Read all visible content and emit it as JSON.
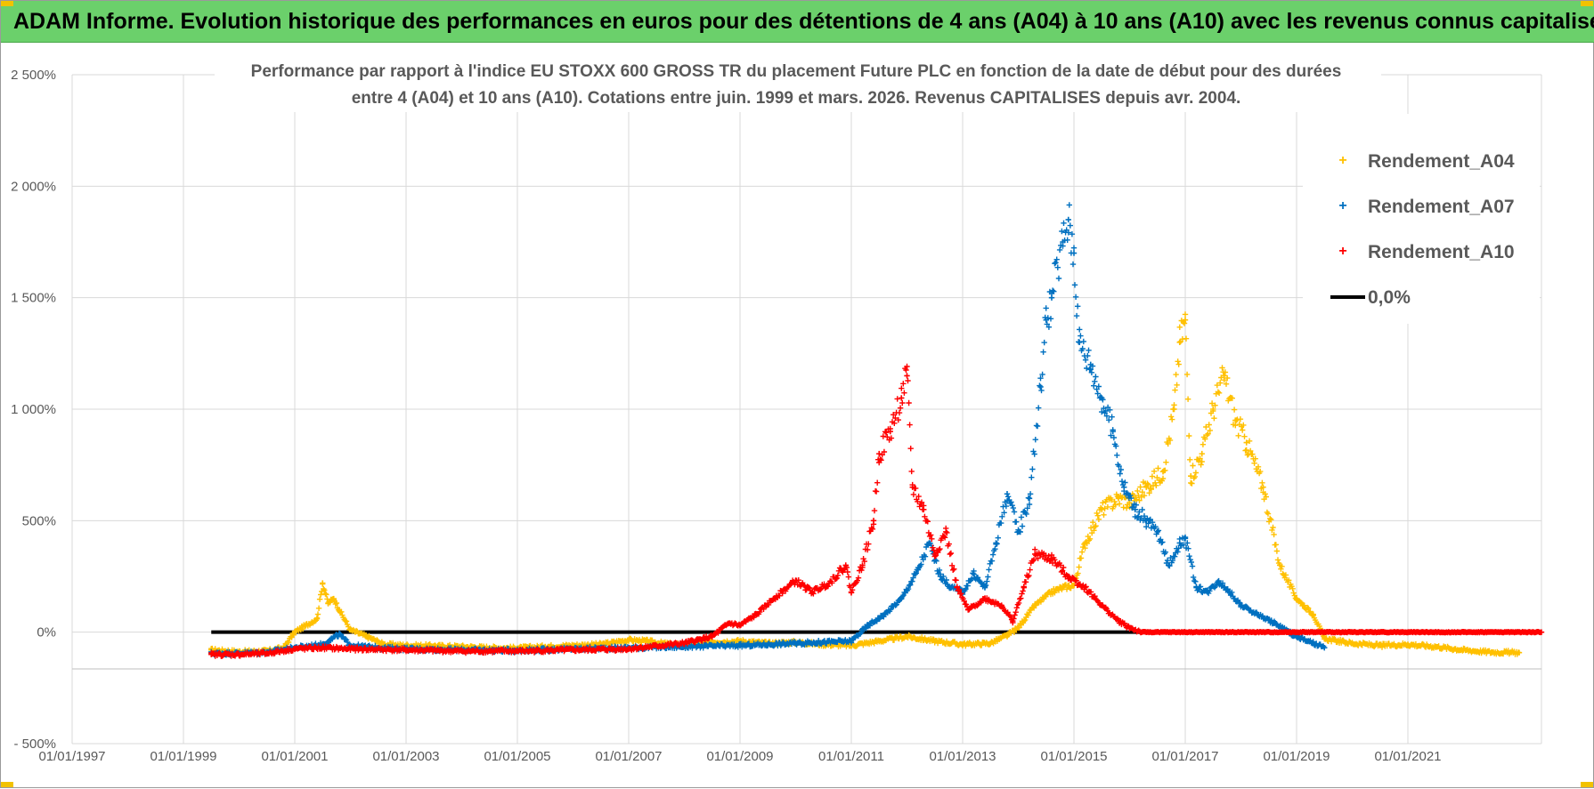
{
  "banner": {
    "title": "ADAM Informe. Evolution historique des performances en euros pour des détentions de 4 ans (A04) à 10 ans (A10) avec les revenus connus capitalisés"
  },
  "colors": {
    "banner_bg": "#6bd06b",
    "a04": "#ffc000",
    "a07": "#0070c0",
    "a10": "#ff0000",
    "zero_line": "#000000",
    "grid": "#d9d9d9",
    "text": "#595959"
  },
  "chart_data": {
    "type": "scatter",
    "title_lines": [
      "Performance par rapport à l'indice EU STOXX 600 GROSS TR  du placement Future PLC en fonction de la date de début pour des durées",
      "entre 4 (A04) et 10 ans (A10). Cotations entre juin. 1999 et mars. 2026. Revenus CAPITALISES depuis avr. 2004."
    ],
    "xlabel": "",
    "ylabel": "",
    "x_range_years": [
      1997.0,
      2023.4
    ],
    "ylim": [
      -500,
      2500
    ],
    "y_ticks": [
      {
        "value": 2500,
        "label": "2 500%"
      },
      {
        "value": 2000,
        "label": "2 000%"
      },
      {
        "value": 1500,
        "label": "1 500%"
      },
      {
        "value": 1000,
        "label": "1 000%"
      },
      {
        "value": 500,
        "label": "500%"
      },
      {
        "value": 0,
        "label": "0%"
      },
      {
        "value": -500,
        "label": "- 500%"
      }
    ],
    "x_ticks": [
      {
        "value": 1997.0,
        "label": "01/01/1997"
      },
      {
        "value": 1999.0,
        "label": "01/01/1999"
      },
      {
        "value": 2001.0,
        "label": "01/01/2001"
      },
      {
        "value": 2003.0,
        "label": "01/01/2003"
      },
      {
        "value": 2005.0,
        "label": "01/01/2005"
      },
      {
        "value": 2007.0,
        "label": "01/01/2007"
      },
      {
        "value": 2009.0,
        "label": "01/01/2009"
      },
      {
        "value": 2011.0,
        "label": "01/01/2011"
      },
      {
        "value": 2013.0,
        "label": "01/01/2013"
      },
      {
        "value": 2015.0,
        "label": "01/01/2015"
      },
      {
        "value": 2017.0,
        "label": "01/01/2017"
      },
      {
        "value": 2019.0,
        "label": "01/01/2019"
      },
      {
        "value": 2021.0,
        "label": "01/01/2021"
      }
    ],
    "grid": true,
    "legend_position": "top-right",
    "zero_line": {
      "name": "0,0%",
      "value": 0,
      "x_start": 1999.5,
      "x_end": 2023.4
    },
    "series": [
      {
        "name": "Rendement_A04",
        "color_key": "a04",
        "points": [
          [
            1999.5,
            -80
          ],
          [
            2000.0,
            -88
          ],
          [
            2000.5,
            -85
          ],
          [
            2000.8,
            -70
          ],
          [
            2001.0,
            0
          ],
          [
            2001.2,
            30
          ],
          [
            2001.4,
            60
          ],
          [
            2001.5,
            220
          ],
          [
            2001.6,
            130
          ],
          [
            2001.7,
            150
          ],
          [
            2001.8,
            100
          ],
          [
            2002.0,
            10
          ],
          [
            2002.3,
            -20
          ],
          [
            2002.6,
            -55
          ],
          [
            2003.0,
            -60
          ],
          [
            2003.5,
            -62
          ],
          [
            2004.0,
            -65
          ],
          [
            2004.5,
            -70
          ],
          [
            2005.0,
            -72
          ],
          [
            2005.5,
            -65
          ],
          [
            2006.0,
            -60
          ],
          [
            2006.5,
            -55
          ],
          [
            2007.0,
            -35
          ],
          [
            2007.3,
            -40
          ],
          [
            2007.6,
            -50
          ],
          [
            2008.0,
            -60
          ],
          [
            2008.5,
            -45
          ],
          [
            2009.0,
            -40
          ],
          [
            2009.5,
            -50
          ],
          [
            2010.0,
            -45
          ],
          [
            2010.5,
            -55
          ],
          [
            2011.0,
            -60
          ],
          [
            2011.5,
            -40
          ],
          [
            2012.0,
            -20
          ],
          [
            2012.5,
            -40
          ],
          [
            2013.0,
            -55
          ],
          [
            2013.5,
            -50
          ],
          [
            2013.8,
            -15
          ],
          [
            2014.0,
            20
          ],
          [
            2014.3,
            120
          ],
          [
            2014.6,
            180
          ],
          [
            2014.8,
            200
          ],
          [
            2015.0,
            210
          ],
          [
            2015.2,
            400
          ],
          [
            2015.5,
            550
          ],
          [
            2015.8,
            600
          ],
          [
            2016.0,
            580
          ],
          [
            2016.3,
            650
          ],
          [
            2016.6,
            720
          ],
          [
            2016.8,
            1000
          ],
          [
            2016.9,
            1300
          ],
          [
            2017.0,
            1400
          ],
          [
            2017.1,
            700
          ],
          [
            2017.3,
            800
          ],
          [
            2017.5,
            1000
          ],
          [
            2017.7,
            1150
          ],
          [
            2017.9,
            950
          ],
          [
            2018.1,
            850
          ],
          [
            2018.4,
            650
          ],
          [
            2018.7,
            300
          ],
          [
            2019.0,
            150
          ],
          [
            2019.3,
            80
          ],
          [
            2019.5,
            -30
          ],
          [
            2020.0,
            -50
          ],
          [
            2020.5,
            -60
          ],
          [
            2021.0,
            -55
          ],
          [
            2021.5,
            -65
          ],
          [
            2022.0,
            -80
          ],
          [
            2022.5,
            -90
          ],
          [
            2023.0,
            -92
          ]
        ]
      },
      {
        "name": "Rendement_A07",
        "color_key": "a07",
        "points": [
          [
            1999.5,
            -95
          ],
          [
            2000.0,
            -95
          ],
          [
            2000.5,
            -90
          ],
          [
            2001.0,
            -70
          ],
          [
            2001.5,
            -55
          ],
          [
            2001.8,
            -10
          ],
          [
            2002.0,
            -60
          ],
          [
            2002.5,
            -70
          ],
          [
            2003.0,
            -75
          ],
          [
            2004.0,
            -80
          ],
          [
            2005.0,
            -82
          ],
          [
            2006.0,
            -75
          ],
          [
            2007.0,
            -70
          ],
          [
            2008.0,
            -65
          ],
          [
            2009.0,
            -60
          ],
          [
            2009.5,
            -55
          ],
          [
            2010.0,
            -50
          ],
          [
            2010.5,
            -45
          ],
          [
            2011.0,
            -40
          ],
          [
            2011.3,
            30
          ],
          [
            2011.6,
            80
          ],
          [
            2011.9,
            150
          ],
          [
            2012.2,
            280
          ],
          [
            2012.4,
            400
          ],
          [
            2012.6,
            250
          ],
          [
            2012.8,
            200
          ],
          [
            2013.0,
            180
          ],
          [
            2013.2,
            260
          ],
          [
            2013.4,
            200
          ],
          [
            2013.6,
            400
          ],
          [
            2013.8,
            620
          ],
          [
            2014.0,
            450
          ],
          [
            2014.2,
            600
          ],
          [
            2014.4,
            1100
          ],
          [
            2014.5,
            1400
          ],
          [
            2014.6,
            1500
          ],
          [
            2014.8,
            1750
          ],
          [
            2014.9,
            1850
          ],
          [
            2015.0,
            1700
          ],
          [
            2015.1,
            1300
          ],
          [
            2015.3,
            1200
          ],
          [
            2015.5,
            1050
          ],
          [
            2015.7,
            900
          ],
          [
            2015.9,
            650
          ],
          [
            2016.1,
            550
          ],
          [
            2016.3,
            500
          ],
          [
            2016.5,
            450
          ],
          [
            2016.7,
            300
          ],
          [
            2016.9,
            400
          ],
          [
            2017.0,
            420
          ],
          [
            2017.2,
            200
          ],
          [
            2017.4,
            180
          ],
          [
            2017.6,
            230
          ],
          [
            2017.8,
            180
          ],
          [
            2018.0,
            120
          ],
          [
            2018.3,
            80
          ],
          [
            2018.6,
            40
          ],
          [
            2019.0,
            -20
          ],
          [
            2019.3,
            -50
          ],
          [
            2019.5,
            -70
          ]
        ]
      },
      {
        "name": "Rendement_A10",
        "color_key": "a10",
        "points": [
          [
            1999.5,
            -100
          ],
          [
            2000.0,
            -100
          ],
          [
            2000.5,
            -95
          ],
          [
            2001.0,
            -75
          ],
          [
            2001.5,
            -70
          ],
          [
            2002.0,
            -75
          ],
          [
            2003.0,
            -80
          ],
          [
            2004.0,
            -85
          ],
          [
            2005.0,
            -85
          ],
          [
            2006.0,
            -80
          ],
          [
            2007.0,
            -75
          ],
          [
            2008.0,
            -50
          ],
          [
            2008.5,
            -20
          ],
          [
            2008.8,
            40
          ],
          [
            2009.0,
            30
          ],
          [
            2009.3,
            80
          ],
          [
            2009.6,
            150
          ],
          [
            2010.0,
            230
          ],
          [
            2010.3,
            180
          ],
          [
            2010.6,
            220
          ],
          [
            2010.9,
            300
          ],
          [
            2011.0,
            180
          ],
          [
            2011.2,
            300
          ],
          [
            2011.4,
            500
          ],
          [
            2011.5,
            800
          ],
          [
            2011.7,
            900
          ],
          [
            2011.9,
            1050
          ],
          [
            2012.0,
            1150
          ],
          [
            2012.1,
            650
          ],
          [
            2012.3,
            550
          ],
          [
            2012.5,
            350
          ],
          [
            2012.7,
            450
          ],
          [
            2012.9,
            200
          ],
          [
            2013.1,
            100
          ],
          [
            2013.4,
            150
          ],
          [
            2013.7,
            120
          ],
          [
            2013.9,
            50
          ],
          [
            2014.1,
            200
          ],
          [
            2014.3,
            350
          ],
          [
            2014.6,
            330
          ],
          [
            2014.9,
            250
          ],
          [
            2015.2,
            200
          ],
          [
            2015.5,
            120
          ],
          [
            2015.8,
            50
          ],
          [
            2016.0,
            20
          ],
          [
            2016.2,
            0
          ],
          [
            2017.0,
            0
          ],
          [
            2018.0,
            0
          ],
          [
            2019.0,
            0
          ],
          [
            2020.0,
            0
          ],
          [
            2021.0,
            0
          ],
          [
            2022.0,
            0
          ],
          [
            2023.4,
            0
          ]
        ]
      }
    ]
  }
}
